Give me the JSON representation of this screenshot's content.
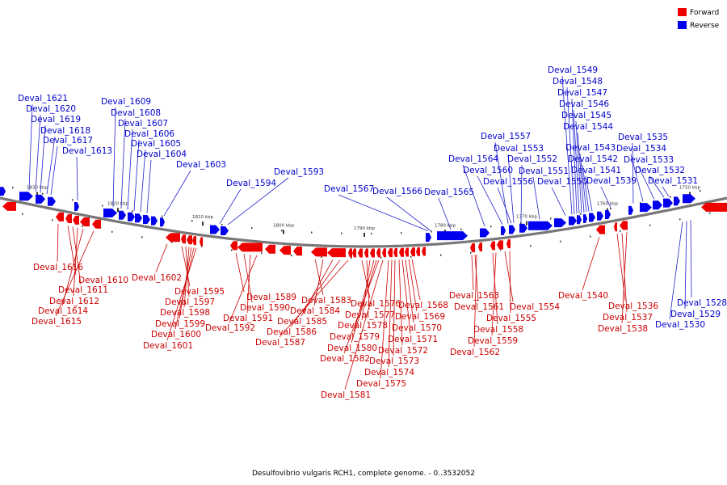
{
  "caption": "Desulfovibrio vulgaris RCH1, complete genome. - 0..3532052",
  "legend": [
    {
      "label": "Forward",
      "color": "#ee0000"
    },
    {
      "label": "Reverse",
      "color": "#0000ee"
    }
  ],
  "ticks": [
    "1830 kbp",
    "1820 kbp",
    "1810 kbp",
    "1800 kbp",
    "1790 kbp",
    "1780 kbp",
    "1770 kbp",
    "1760 kbp",
    "1750 kbp"
  ],
  "reverse_labels": [
    "Deval_1621",
    "Deval_1620",
    "Deval_1619",
    "Deval_1618",
    "Deval_1617",
    "Deval_1613",
    "Deval_1609",
    "Deval_1608",
    "Deval_1607",
    "Deval_1606",
    "Deval_1605",
    "Deval_1604",
    "Deval_1603",
    "Deval_1594",
    "Deval_1593",
    "Deval_1567",
    "Deval_1566",
    "Deval_1565",
    "Deval_1564",
    "Deval_1560",
    "Deval_1557",
    "Deval_1556",
    "Deval_1553",
    "Deval_1552",
    "Deval_1551",
    "Deval_1550",
    "Deval_1549",
    "Deval_1548",
    "Deval_1547",
    "Deval_1546",
    "Deval_1545",
    "Deval_1544",
    "Deval_1543",
    "Deval_1542",
    "Deval_1541",
    "Deval_1539",
    "Deval_1535",
    "Deval_1534",
    "Deval_1533",
    "Deval_1532",
    "Deval_1531",
    "Deval_1528",
    "Deval_1529",
    "Deval_1530"
  ],
  "forward_labels": [
    "Deval_1616",
    "Deval_1610",
    "Deval_1611",
    "Deval_1612",
    "Deval_1614",
    "Deval_1615",
    "Deval_1602",
    "Deval_1595",
    "Deval_1597",
    "Deval_1598",
    "Deval_1599",
    "Deval_1600",
    "Deval_1601",
    "Deval_1589",
    "Deval_1590",
    "Deval_1591",
    "Deval_1592",
    "Deval_1583",
    "Deval_1584",
    "Deval_1585",
    "Deval_1586",
    "Deval_1587",
    "Deval_1576",
    "Deval_1577",
    "Deval_1578",
    "Deval_1579",
    "Deval_1580",
    "Deval_1582",
    "Deval_1581",
    "Deval_1568",
    "Deval_1569",
    "Deval_1570",
    "Deval_1571",
    "Deval_1572",
    "Deval_1573",
    "Deval_1574",
    "Deval_1575",
    "Deval_1563",
    "Deval_1561",
    "Deval_1558",
    "Deval_1559",
    "Deval_1562",
    "Deval_1554",
    "Deval_1555",
    "Deval_1540",
    "Deval_1536",
    "Deval_1537",
    "Deval_1538"
  ]
}
